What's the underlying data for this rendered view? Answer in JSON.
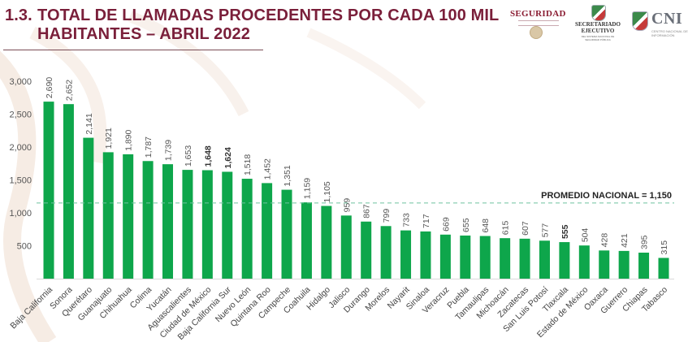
{
  "header": {
    "section_number": "1.3.",
    "title_line1": "TOTAL DE LLAMADAS PROCEDENTES POR CADA 100 MIL",
    "title_line2": "HABITANTES – ABRIL 2022"
  },
  "logos": {
    "seguridad": "SEGURIDAD",
    "secretariado_line1": "SECRETARIADO",
    "secretariado_line2": "EJECUTIVO",
    "secretariado_sub": "DEL SISTEMA NACIONAL DE SEGURIDAD PÚBLICA",
    "cni": "CNI",
    "cni_sub": "CENTRO NACIONAL DE INFORMACIÓN"
  },
  "colors": {
    "bar": "#0ea64b",
    "title": "#7a1f3a",
    "average_line": "#6fc2a0"
  },
  "chart_data": {
    "type": "bar",
    "title": "TOTAL DE LLAMADAS PROCEDENTES POR CADA 100 MIL HABITANTES – ABRIL 2022",
    "xlabel": "",
    "ylabel": "",
    "ylim": [
      0,
      3000
    ],
    "yticks": [
      500,
      1000,
      1500,
      2000,
      2500,
      3000
    ],
    "ytick_labels": [
      "500",
      "1,000",
      "1,500",
      "2,000",
      "2,500",
      "3,000"
    ],
    "grid": false,
    "categories": [
      "Baja California",
      "Sonora",
      "Querétaro",
      "Guanajuato",
      "Chihuahua",
      "Colima",
      "Yucatán",
      "Aguascalientes",
      "Ciudad de México",
      "Baja California Sur",
      "Nuevo León",
      "Quintana Roo",
      "Campeche",
      "Coahuila",
      "Hidalgo",
      "Jalisco",
      "Durango",
      "Morelos",
      "Nayarit",
      "Sinaloa",
      "Veracruz",
      "Puebla",
      "Tamaulipas",
      "Michoacán",
      "Zacatecas",
      "San Luis Potosí",
      "Tlaxcala",
      "Estado de México",
      "Oaxaca",
      "Guerrero",
      "Chiapas",
      "Tabasco"
    ],
    "values": [
      2690,
      2652,
      2141,
      1921,
      1890,
      1787,
      1739,
      1653,
      1648,
      1624,
      1518,
      1452,
      1351,
      1159,
      1105,
      959,
      867,
      799,
      733,
      717,
      669,
      655,
      648,
      615,
      607,
      577,
      555,
      504,
      428,
      421,
      395,
      315
    ],
    "value_labels": [
      "2,690",
      "2,652",
      "2,141",
      "1,921",
      "1,890",
      "1,787",
      "1,739",
      "1,653",
      "1,648",
      "1,624",
      "1,518",
      "1,452",
      "1,351",
      "1,159",
      "1,105",
      "959",
      "867",
      "799",
      "733",
      "717",
      "669",
      "655",
      "648",
      "615",
      "607",
      "577",
      "555",
      "504",
      "428",
      "421",
      "395",
      "315"
    ],
    "bold_labels": [
      "Ciudad de México",
      "Baja California Sur",
      "Tlaxcala"
    ],
    "reference_line": {
      "value": 1150,
      "label": "PROMEDIO NACIONAL = 1,150",
      "style": "dashed"
    }
  }
}
